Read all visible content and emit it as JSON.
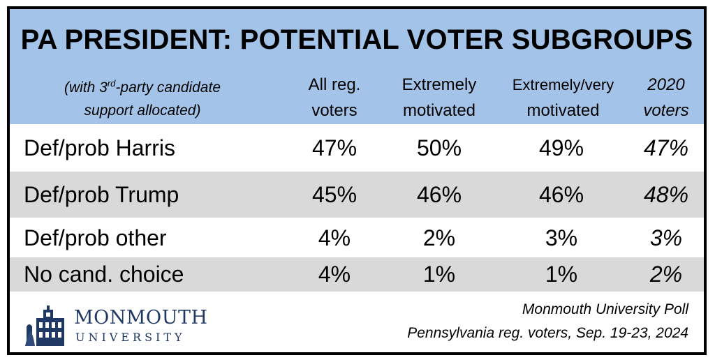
{
  "chart_data": {
    "type": "table",
    "title": "PA PRESIDENT: POTENTIAL VOTER SUBGROUPS",
    "note": {
      "line1_pre": "(with 3",
      "line1_sup": "rd",
      "line1_post": "-party candidate",
      "line2": "support allocated)"
    },
    "columns": [
      {
        "line1": "All reg.",
        "line2": "voters"
      },
      {
        "line1": "Extremely",
        "line2": "motivated"
      },
      {
        "line1": "Extremely/very",
        "line2": "motivated"
      },
      {
        "line1": "2020",
        "line2": "voters"
      }
    ],
    "rows": [
      {
        "label": "Def/prob Harris",
        "values": [
          "47%",
          "50%",
          "49%",
          "47%"
        ]
      },
      {
        "label": "Def/prob Trump",
        "values": [
          "45%",
          "46%",
          "46%",
          "48%"
        ]
      },
      {
        "label": "Def/prob other",
        "values": [
          "4%",
          "2%",
          "3%",
          "3%"
        ]
      },
      {
        "label": "No cand. choice",
        "values": [
          "4%",
          "1%",
          "1%",
          "2%"
        ]
      }
    ],
    "header_color": "#a4c3e8",
    "shade_color": "#d9d9d9"
  },
  "logo": {
    "line1": "MONMOUTH",
    "line2": "UNIVERSITY"
  },
  "source": {
    "line1": "Monmouth University Poll",
    "line2": "Pennsylvania reg. voters, Sep. 19-23, 2024"
  }
}
